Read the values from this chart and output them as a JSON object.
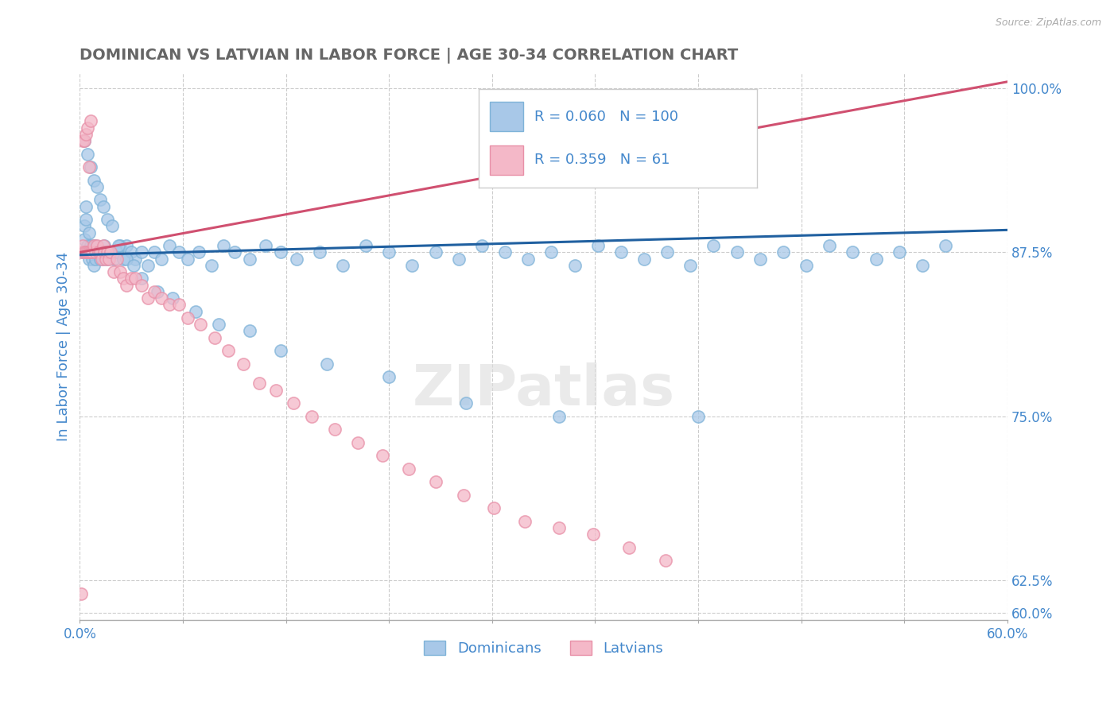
{
  "title": "DOMINICAN VS LATVIAN IN LABOR FORCE | AGE 30-34 CORRELATION CHART",
  "source_text": "Source: ZipAtlas.com",
  "ylabel": "In Labor Force | Age 30-34",
  "xlim": [
    0.0,
    0.6
  ],
  "ylim": [
    0.595,
    1.012
  ],
  "xtick_positions": [
    0.0,
    0.06667,
    0.13333,
    0.2,
    0.26667,
    0.33333,
    0.4,
    0.46667,
    0.53333,
    0.6
  ],
  "xtick_labels": [
    "0.0%",
    "",
    "",
    "",
    "",
    "",
    "",
    "",
    "",
    "60.0%"
  ],
  "yticks_right": [
    0.6,
    0.625,
    0.75,
    0.875,
    1.0
  ],
  "ytick_labels_right": [
    "60.0%",
    "62.5%",
    "75.0%",
    "87.5%",
    "100.0%"
  ],
  "blue_R": 0.06,
  "blue_N": 100,
  "pink_R": 0.359,
  "pink_N": 61,
  "blue_dot_color": "#a8c8e8",
  "blue_dot_edge": "#7fb3d8",
  "pink_dot_color": "#f4b8c8",
  "pink_dot_edge": "#e890a8",
  "blue_line_color": "#2060a0",
  "pink_line_color": "#d05070",
  "title_color": "#666666",
  "tick_label_color": "#4488cc",
  "ylabel_color": "#4488cc",
  "source_color": "#aaaaaa",
  "legend_box_edge": "#cccccc",
  "watermark_color": "#dddddd",
  "grid_color": "#cccccc",
  "blue_dots_x": [
    0.002,
    0.003,
    0.003,
    0.004,
    0.004,
    0.005,
    0.005,
    0.006,
    0.006,
    0.007,
    0.007,
    0.008,
    0.008,
    0.009,
    0.009,
    0.01,
    0.01,
    0.011,
    0.012,
    0.013,
    0.014,
    0.015,
    0.016,
    0.017,
    0.018,
    0.02,
    0.022,
    0.024,
    0.026,
    0.028,
    0.03,
    0.033,
    0.036,
    0.04,
    0.044,
    0.048,
    0.053,
    0.058,
    0.064,
    0.07,
    0.077,
    0.085,
    0.093,
    0.1,
    0.11,
    0.12,
    0.13,
    0.14,
    0.155,
    0.17,
    0.185,
    0.2,
    0.215,
    0.23,
    0.245,
    0.26,
    0.275,
    0.29,
    0.305,
    0.32,
    0.335,
    0.35,
    0.365,
    0.38,
    0.395,
    0.41,
    0.425,
    0.44,
    0.455,
    0.47,
    0.485,
    0.5,
    0.515,
    0.53,
    0.545,
    0.56,
    0.003,
    0.005,
    0.007,
    0.009,
    0.011,
    0.013,
    0.015,
    0.018,
    0.021,
    0.025,
    0.03,
    0.035,
    0.04,
    0.05,
    0.06,
    0.075,
    0.09,
    0.11,
    0.13,
    0.16,
    0.2,
    0.25,
    0.31,
    0.4
  ],
  "blue_dots_y": [
    0.875,
    0.885,
    0.895,
    0.9,
    0.91,
    0.875,
    0.88,
    0.87,
    0.89,
    0.875,
    0.88,
    0.875,
    0.87,
    0.865,
    0.88,
    0.87,
    0.88,
    0.875,
    0.875,
    0.87,
    0.875,
    0.87,
    0.88,
    0.875,
    0.87,
    0.875,
    0.87,
    0.875,
    0.88,
    0.87,
    0.88,
    0.875,
    0.87,
    0.875,
    0.865,
    0.875,
    0.87,
    0.88,
    0.875,
    0.87,
    0.875,
    0.865,
    0.88,
    0.875,
    0.87,
    0.88,
    0.875,
    0.87,
    0.875,
    0.865,
    0.88,
    0.875,
    0.865,
    0.875,
    0.87,
    0.88,
    0.875,
    0.87,
    0.875,
    0.865,
    0.88,
    0.875,
    0.87,
    0.875,
    0.865,
    0.88,
    0.875,
    0.87,
    0.875,
    0.865,
    0.88,
    0.875,
    0.87,
    0.875,
    0.865,
    0.88,
    0.96,
    0.95,
    0.94,
    0.93,
    0.925,
    0.915,
    0.91,
    0.9,
    0.895,
    0.88,
    0.87,
    0.865,
    0.855,
    0.845,
    0.84,
    0.83,
    0.82,
    0.815,
    0.8,
    0.79,
    0.78,
    0.76,
    0.75,
    0.75
  ],
  "pink_dots_x": [
    0.001,
    0.002,
    0.002,
    0.003,
    0.003,
    0.004,
    0.004,
    0.005,
    0.005,
    0.006,
    0.006,
    0.007,
    0.007,
    0.008,
    0.009,
    0.01,
    0.011,
    0.012,
    0.013,
    0.014,
    0.015,
    0.016,
    0.017,
    0.018,
    0.019,
    0.02,
    0.022,
    0.024,
    0.026,
    0.028,
    0.03,
    0.033,
    0.036,
    0.04,
    0.044,
    0.048,
    0.053,
    0.058,
    0.064,
    0.07,
    0.078,
    0.087,
    0.096,
    0.106,
    0.116,
    0.127,
    0.138,
    0.15,
    0.165,
    0.18,
    0.196,
    0.213,
    0.23,
    0.248,
    0.268,
    0.288,
    0.31,
    0.332,
    0.355,
    0.379,
    0.001
  ],
  "pink_dots_y": [
    0.875,
    0.88,
    0.96,
    0.875,
    0.96,
    0.875,
    0.965,
    0.875,
    0.97,
    0.875,
    0.94,
    0.875,
    0.975,
    0.875,
    0.88,
    0.875,
    0.88,
    0.875,
    0.875,
    0.87,
    0.88,
    0.875,
    0.87,
    0.875,
    0.87,
    0.875,
    0.86,
    0.87,
    0.86,
    0.855,
    0.85,
    0.855,
    0.855,
    0.85,
    0.84,
    0.845,
    0.84,
    0.835,
    0.835,
    0.825,
    0.82,
    0.81,
    0.8,
    0.79,
    0.775,
    0.77,
    0.76,
    0.75,
    0.74,
    0.73,
    0.72,
    0.71,
    0.7,
    0.69,
    0.68,
    0.67,
    0.665,
    0.66,
    0.65,
    0.64,
    0.615
  ],
  "blue_trend_x": [
    0.0,
    0.6
  ],
  "blue_trend_y": [
    0.873,
    0.892
  ],
  "pink_trend_x": [
    0.0,
    0.6
  ],
  "pink_trend_y": [
    0.875,
    1.005
  ]
}
